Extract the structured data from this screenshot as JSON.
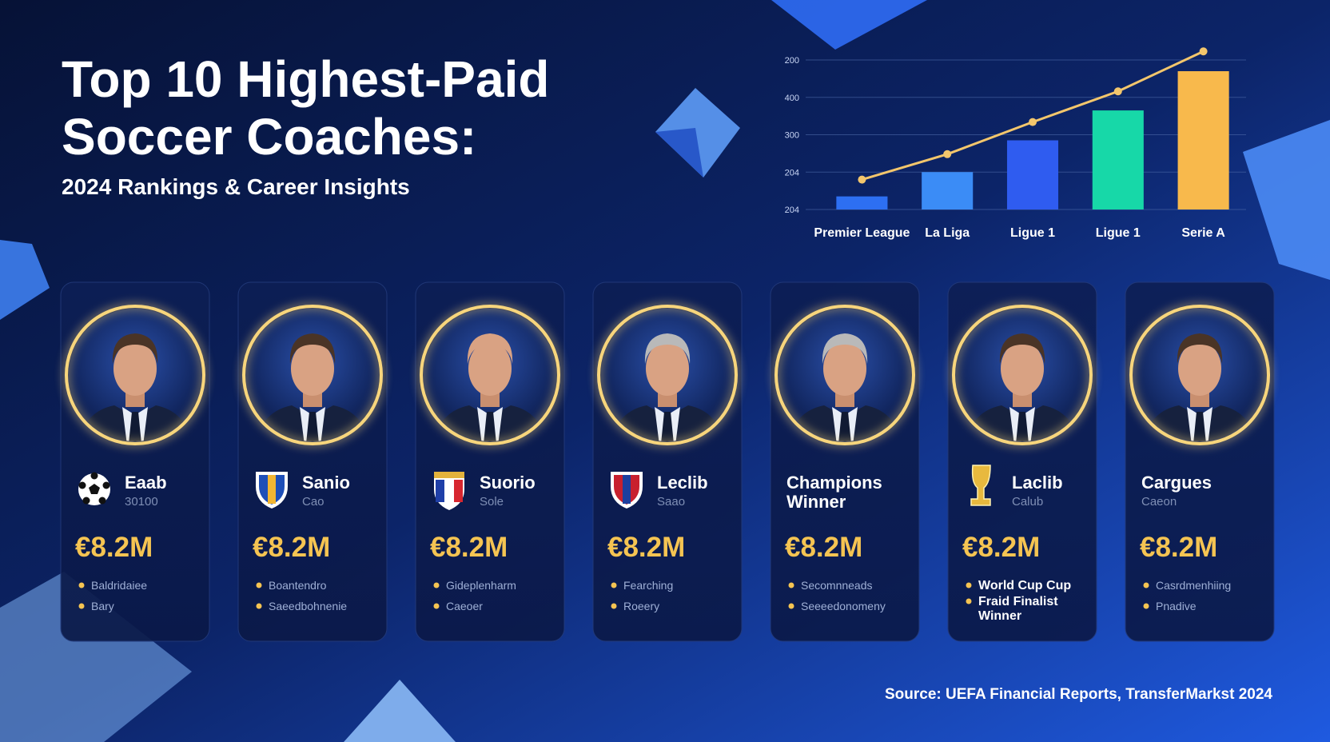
{
  "header": {
    "title_lines": [
      "Top 10 Highest-Paid",
      "Soccer Coaches:"
    ],
    "subtitle": "2024 Rankings & Career Insights"
  },
  "chart_data": {
    "type": "bar",
    "categories": [
      "Premier League",
      "La Liga",
      "Ligue 1",
      "Ligue 1",
      "Serie A"
    ],
    "values": [
      0.35,
      1.0,
      1.85,
      2.65,
      3.7
    ],
    "colors": [
      "#2d6ff2",
      "#3b8cf6",
      "#2f5cf0",
      "#17d8a8",
      "#f8b94c"
    ],
    "trend": {
      "color": "#f3c66c",
      "values": [
        0.8,
        1.48,
        2.34,
        3.16,
        4.23
      ]
    },
    "ylim": [
      0,
      4.4
    ],
    "yticks": [
      {
        "value": 0,
        "label": "204"
      },
      {
        "value": 1,
        "label": "204"
      },
      {
        "value": 2,
        "label": "300"
      },
      {
        "value": 3,
        "label": "400"
      },
      {
        "value": 4,
        "label": "200"
      }
    ],
    "grid": true
  },
  "cards": [
    {
      "name": "Eaab",
      "sub": "30100",
      "salary": "€8.2M",
      "bullets": [
        "Baldridaiee",
        "Bary"
      ]
    },
    {
      "name": "Sanio",
      "sub": "Cao",
      "salary": "€8.2M",
      "bullets": [
        "Boantendro",
        "Saeedbohnenie"
      ]
    },
    {
      "name": "Suorio",
      "sub": "Sole",
      "salary": "€8.2M",
      "bullets": [
        "Gideplenharm",
        "Caeoer"
      ]
    },
    {
      "name": "Leclib",
      "sub": "Saao",
      "salary": "€8.2M",
      "bullets": [
        "Fearching",
        "Roeery"
      ]
    },
    {
      "name": "Champions Winner",
      "salary": "€8.2M",
      "bullets": [
        "Secomnneads",
        "Seeeedonomeny"
      ]
    },
    {
      "name": "Laclib",
      "sub": "Calub",
      "salary": "€8.2M",
      "bullets": [
        "World Cup Cup",
        "Fraid Finalist Winner"
      ]
    },
    {
      "name": "Cargues",
      "sub": "Caeon",
      "salary": "€8.2M",
      "bullets": [
        "Casrdmenhiing",
        "Pnadive"
      ]
    }
  ],
  "source": "Source: UEFA Financial Reports, TransferMarkst 2024"
}
